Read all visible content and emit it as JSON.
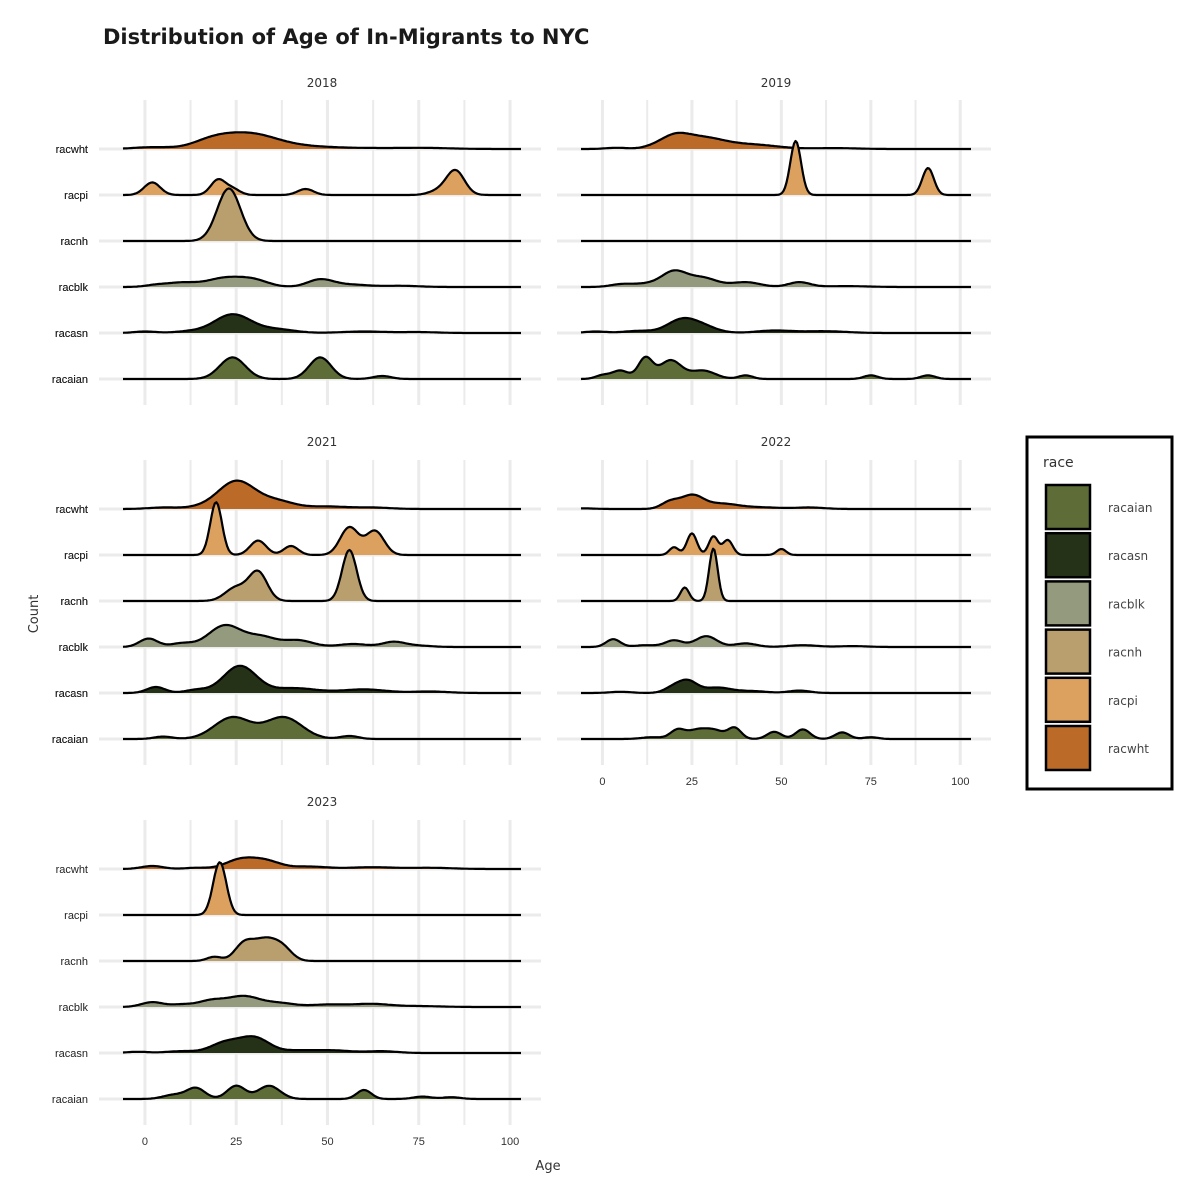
{
  "title": "Distribution of Age of In-Migrants to NYC",
  "chart_data": {
    "type": "ridgeline",
    "title": "Distribution of Age of In-Migrants to NYC",
    "xlabel": "Age",
    "ylabel": "Count",
    "xlim": [
      -6,
      103
    ],
    "x_ticks": [
      0,
      25,
      50,
      75,
      100
    ],
    "x_tick_labels": [
      "0",
      "25",
      "50",
      "75",
      "100"
    ],
    "categories": [
      "racaian",
      "racasn",
      "racblk",
      "racnh",
      "racpi",
      "racwht"
    ],
    "grid": true,
    "legend": {
      "title": "race",
      "position": "right",
      "entries": [
        "racaian",
        "racasn",
        "racblk",
        "racnh",
        "racpi",
        "racwht"
      ]
    },
    "colors": {
      "racaian": "#5e6d38",
      "racasn": "#263218",
      "racblk": "#939a7d",
      "racnh": "#b99e6e",
      "racpi": "#dca05f",
      "racwht": "#bb6a27"
    },
    "facets": [
      {
        "label": "2018",
        "series": {
          "racwht": [
            [
              2,
              0.06,
              5
            ],
            [
              18,
              0.18,
              5
            ],
            [
              28,
              0.52,
              8
            ],
            [
              45,
              0.06,
              8
            ],
            [
              65,
              0.03,
              12
            ],
            [
              78,
              0.02,
              6
            ]
          ],
          "racpi": [
            [
              2,
              0.42,
              2.2
            ],
            [
              20,
              0.5,
              2
            ],
            [
              24,
              0.2,
              2
            ],
            [
              44,
              0.2,
              2.2
            ],
            [
              80,
              0.12,
              2.5
            ],
            [
              85,
              0.82,
              2.5
            ]
          ],
          "racnh": [
            [
              23,
              1.75,
              3.2
            ]
          ],
          "racblk": [
            [
              3,
              0.06,
              3
            ],
            [
              10,
              0.14,
              4
            ],
            [
              22,
              0.3,
              5
            ],
            [
              30,
              0.2,
              4
            ],
            [
              48,
              0.24,
              3.5
            ],
            [
              56,
              0.08,
              5
            ],
            [
              70,
              0.04,
              5
            ]
          ],
          "racasn": [
            [
              0,
              0.05,
              3
            ],
            [
              12,
              0.05,
              4
            ],
            [
              24,
              0.62,
              5
            ],
            [
              36,
              0.12,
              5
            ],
            [
              60,
              0.05,
              6
            ],
            [
              75,
              0.03,
              5
            ]
          ],
          "racaian": [
            [
              24,
              0.72,
              3.5
            ],
            [
              48,
              0.72,
              3
            ],
            [
              65,
              0.1,
              2.5
            ]
          ]
        }
      },
      {
        "label": "2019",
        "series": {
          "racwht": [
            [
              4,
              0.04,
              3
            ],
            [
              14,
              0.04,
              3
            ],
            [
              20,
              0.36,
              4
            ],
            [
              28,
              0.36,
              6
            ],
            [
              42,
              0.14,
              7
            ],
            [
              65,
              0.03,
              6
            ]
          ],
          "racpi": [
            [
              54,
              1.8,
              1.5
            ],
            [
              91,
              0.9,
              1.6
            ]
          ],
          "racnh": [],
          "racblk": [
            [
              5,
              0.08,
              3
            ],
            [
              12,
              0.1,
              4
            ],
            [
              20,
              0.5,
              3.5
            ],
            [
              28,
              0.3,
              4
            ],
            [
              40,
              0.16,
              4
            ],
            [
              55,
              0.16,
              3
            ],
            [
              68,
              0.03,
              6
            ]
          ],
          "racasn": [
            [
              -2,
              0.05,
              3
            ],
            [
              10,
              0.07,
              4
            ],
            [
              22,
              0.42,
              4
            ],
            [
              28,
              0.2,
              4
            ],
            [
              48,
              0.08,
              5
            ],
            [
              62,
              0.06,
              6
            ]
          ],
          "racaian": [
            [
              0,
              0.12,
              2
            ],
            [
              5,
              0.28,
              2.3
            ],
            [
              12,
              0.7,
              2
            ],
            [
              19,
              0.62,
              3
            ],
            [
              28,
              0.28,
              3.5
            ],
            [
              40,
              0.12,
              2
            ],
            [
              75,
              0.12,
              2
            ],
            [
              91,
              0.12,
              2
            ]
          ]
        }
      },
      {
        "label": "2021",
        "series": {
          "racwht": [
            [
              5,
              0.05,
              4
            ],
            [
              15,
              0.05,
              4
            ],
            [
              25,
              0.92,
              5
            ],
            [
              36,
              0.26,
              5
            ],
            [
              50,
              0.08,
              5
            ],
            [
              62,
              0.05,
              5
            ]
          ],
          "racpi": [
            [
              19.5,
              1.76,
              1.6
            ],
            [
              31,
              0.48,
              2.2
            ],
            [
              40,
              0.3,
              2
            ],
            [
              56,
              0.92,
              2.5
            ],
            [
              63,
              0.8,
              2.5
            ]
          ],
          "racnh": [
            [
              25,
              0.45,
              3
            ],
            [
              31,
              0.95,
              2.5
            ],
            [
              56,
              1.7,
              2
            ]
          ],
          "racblk": [
            [
              1,
              0.28,
              2.5
            ],
            [
              10,
              0.12,
              3
            ],
            [
              22,
              0.72,
              4.5
            ],
            [
              32,
              0.32,
              4
            ],
            [
              42,
              0.22,
              4
            ],
            [
              57,
              0.1,
              4
            ],
            [
              68,
              0.16,
              3
            ],
            [
              74,
              0.05,
              4
            ]
          ],
          "racasn": [
            [
              3,
              0.2,
              2.5
            ],
            [
              14,
              0.1,
              3
            ],
            [
              26,
              0.9,
              4.5
            ],
            [
              41,
              0.16,
              6
            ],
            [
              60,
              0.12,
              6
            ],
            [
              78,
              0.05,
              5
            ]
          ],
          "racaian": [
            [
              5,
              0.08,
              2.5
            ],
            [
              24,
              0.72,
              5
            ],
            [
              38,
              0.72,
              5
            ],
            [
              56,
              0.1,
              2.5
            ]
          ]
        }
      },
      {
        "label": "2022",
        "series": {
          "racwht": [
            [
              -5,
              0.02,
              3
            ],
            [
              19,
              0.24,
              2.5
            ],
            [
              25,
              0.42,
              3
            ],
            [
              33,
              0.18,
              5
            ],
            [
              45,
              0.05,
              5
            ],
            [
              58,
              0.05,
              4
            ]
          ],
          "racpi": [
            [
              20,
              0.26,
              1.3
            ],
            [
              25,
              0.72,
              1.4
            ],
            [
              31,
              0.62,
              1.3
            ],
            [
              35,
              0.5,
              1.4
            ],
            [
              50,
              0.2,
              1.3
            ]
          ],
          "racnh": [
            [
              23,
              0.45,
              1.2
            ],
            [
              31,
              1.75,
              1.2
            ]
          ],
          "racblk": [
            [
              3,
              0.26,
              2
            ],
            [
              12,
              0.06,
              3
            ],
            [
              20,
              0.22,
              2.5
            ],
            [
              29,
              0.36,
              3
            ],
            [
              40,
              0.12,
              3
            ],
            [
              56,
              0.06,
              4
            ],
            [
              70,
              0.03,
              4
            ]
          ],
          "racasn": [
            [
              5,
              0.04,
              3
            ],
            [
              20,
              0.2,
              2.5
            ],
            [
              24,
              0.36,
              2.5
            ],
            [
              32,
              0.18,
              4
            ],
            [
              42,
              0.06,
              4
            ],
            [
              55,
              0.08,
              3
            ]
          ],
          "racaian": [
            [
              14,
              0.06,
              3
            ],
            [
              21,
              0.3,
              2
            ],
            [
              26,
              0.24,
              2.5
            ],
            [
              31,
              0.3,
              3
            ],
            [
              37,
              0.35,
              1.8
            ],
            [
              48,
              0.24,
              2
            ],
            [
              56,
              0.32,
              2
            ],
            [
              67,
              0.22,
              2
            ],
            [
              75,
              0.06,
              2
            ]
          ]
        }
      },
      {
        "label": "2023",
        "series": {
          "racwht": [
            [
              2,
              0.1,
              3
            ],
            [
              14,
              0.04,
              3
            ],
            [
              26,
              0.3,
              4
            ],
            [
              33,
              0.26,
              4
            ],
            [
              45,
              0.08,
              5
            ],
            [
              62,
              0.06,
              6
            ],
            [
              78,
              0.04,
              6
            ]
          ],
          "racpi": [
            [
              20.5,
              1.76,
              1.8
            ]
          ],
          "racnh": [
            [
              19,
              0.14,
              2
            ],
            [
              27,
              0.5,
              2.5
            ],
            [
              33,
              0.72,
              3.5
            ],
            [
              38,
              0.3,
              2.5
            ]
          ],
          "racblk": [
            [
              2,
              0.16,
              3
            ],
            [
              10,
              0.08,
              3
            ],
            [
              18,
              0.2,
              3.5
            ],
            [
              27,
              0.36,
              4.5
            ],
            [
              37,
              0.12,
              4
            ],
            [
              50,
              0.08,
              5
            ],
            [
              62,
              0.1,
              5
            ],
            [
              75,
              0.03,
              6
            ]
          ],
          "racasn": [
            [
              -2,
              0.04,
              3
            ],
            [
              10,
              0.06,
              4
            ],
            [
              22,
              0.34,
              4
            ],
            [
              30,
              0.5,
              4
            ],
            [
              42,
              0.08,
              5
            ],
            [
              52,
              0.08,
              5
            ],
            [
              65,
              0.06,
              4
            ]
          ],
          "racaian": [
            [
              8,
              0.14,
              3
            ],
            [
              14,
              0.36,
              2.5
            ],
            [
              25,
              0.44,
              2.5
            ],
            [
              34,
              0.44,
              3
            ],
            [
              60,
              0.3,
              2
            ],
            [
              76,
              0.08,
              2.5
            ],
            [
              84,
              0.06,
              2.5
            ]
          ]
        }
      }
    ]
  }
}
